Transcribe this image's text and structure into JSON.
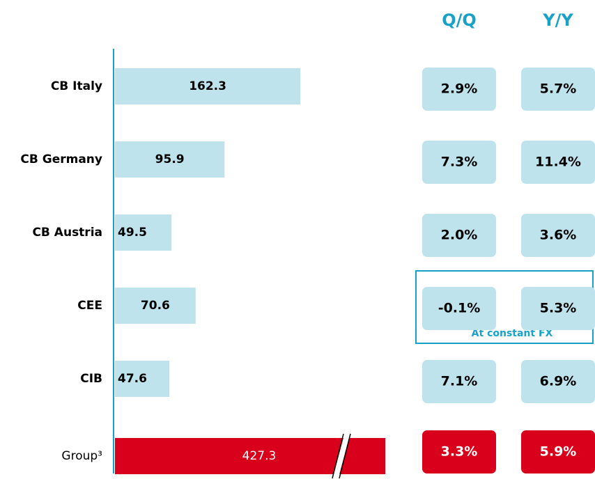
{
  "chart_data": {
    "type": "bar",
    "orientation": "horizontal",
    "categories": [
      "CB Italy",
      "CB Germany",
      "CB Austria",
      "CEE",
      "CIB",
      "Group³"
    ],
    "values": [
      162.3,
      95.9,
      49.5,
      70.6,
      47.6,
      427.3
    ],
    "colors": [
      "#bfe3ec",
      "#bfe3ec",
      "#bfe3ec",
      "#bfe3ec",
      "#bfe3ec",
      "#d9001b"
    ],
    "axis_break": true,
    "columns": [
      {
        "name": "Q/Q",
        "values": [
          2.9,
          7.3,
          2.0,
          -0.1,
          7.1,
          3.3
        ],
        "value_labels": [
          "2.9%",
          "7.3%",
          "2.0%",
          "-0.1%",
          "7.1%",
          "3.3%"
        ]
      },
      {
        "name": "Y/Y",
        "values": [
          5.7,
          11.4,
          3.6,
          5.3,
          6.9,
          5.9
        ],
        "value_labels": [
          "5.7%",
          "11.4%",
          "3.6%",
          "5.3%",
          "6.9%",
          "5.9%"
        ]
      }
    ],
    "annotation": {
      "text": "At constant FX",
      "category": "CEE"
    },
    "accent_color": "#1aa1c8"
  }
}
